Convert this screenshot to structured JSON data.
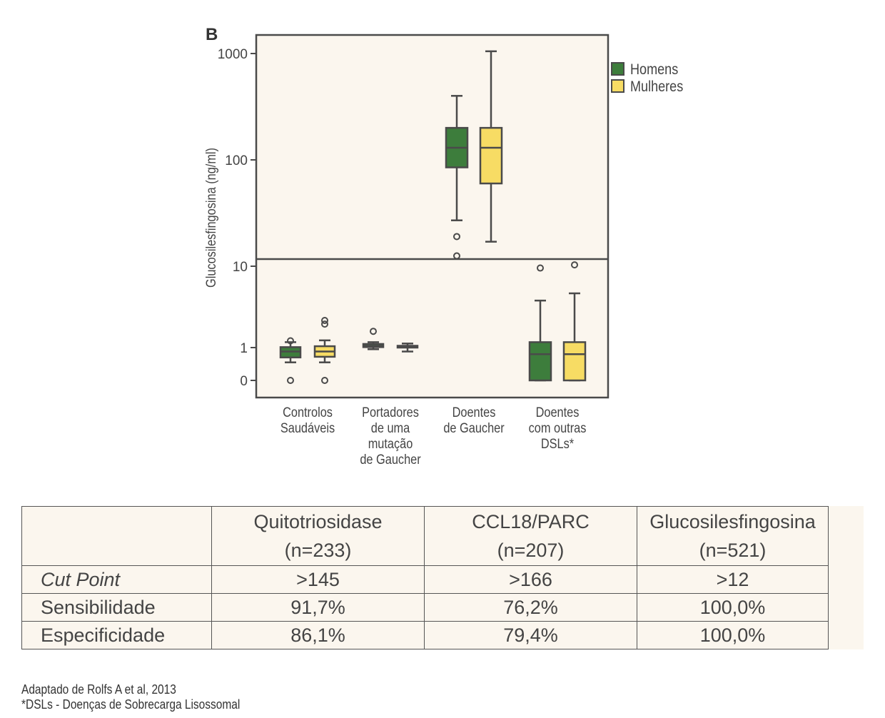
{
  "panel_label": "B",
  "chart_data": {
    "type": "box",
    "ylabel": "Glucosilesfingosina (ng/ml)",
    "y_scale": "broken: linear 0–10 (lower panel), log 10–1000 (upper panel)",
    "y_ticks": [
      "0",
      "1",
      "10",
      "100",
      "1000"
    ],
    "categories": [
      [
        "Controlos",
        "Saudáveis"
      ],
      [
        "Portadores",
        "de uma",
        "mutação",
        "de Gaucher"
      ],
      [
        "Doentes",
        "de Gaucher"
      ],
      [
        "Doentes",
        "com outras",
        "DSLs*"
      ]
    ],
    "legend": {
      "position": "top-right",
      "entries": [
        "Homens",
        "Mulheres"
      ]
    },
    "colors": {
      "Homens": "#3d7d3c",
      "Mulheres": "#f7dc64",
      "plot_bg": "#fbf6ee",
      "frame": "#4a4a4a"
    },
    "series": [
      {
        "name": "Homens",
        "boxes": [
          {
            "category": 0,
            "whisker_low": 0.55,
            "q1": 0.7,
            "median": 0.88,
            "q3": 1.05,
            "whisker_high": 1.6,
            "outliers": [
              0,
              1.75
            ]
          },
          {
            "category": 1,
            "whisker_low": 0.95,
            "q1": 1.05,
            "median": 1.2,
            "q3": 1.4,
            "whisker_high": 1.6,
            "outliers": [
              2.8
            ]
          },
          {
            "category": 2,
            "whisker_low": 27,
            "q1": 85,
            "median": 130,
            "q3": 200,
            "whisker_high": 400,
            "outliers": [
              19,
              12.5
            ]
          },
          {
            "category": 3,
            "whisker_low": 0,
            "q1": 0,
            "median": 0.8,
            "q3": 1.6,
            "whisker_high": 6.2,
            "outliers": [
              9.8
            ]
          }
        ]
      },
      {
        "name": "Mulheres",
        "boxes": [
          {
            "category": 0,
            "whisker_low": 0.55,
            "q1": 0.72,
            "median": 0.88,
            "q3": 1.15,
            "whisker_high": 1.8,
            "outliers": [
              0,
              3.6,
              4.0
            ]
          },
          {
            "category": 1,
            "whisker_low": 0.88,
            "q1": 1.0,
            "median": 1.1,
            "q3": 1.2,
            "whisker_high": 1.45,
            "outliers": []
          },
          {
            "category": 2,
            "whisker_low": 17,
            "q1": 60,
            "median": 130,
            "q3": 200,
            "whisker_high": 1050,
            "outliers": []
          },
          {
            "category": 3,
            "whisker_low": 0,
            "q1": 0,
            "median": 0.8,
            "q3": 1.6,
            "whisker_high": 7.0,
            "outliers": [
              10.3
            ]
          }
        ]
      }
    ]
  },
  "table": {
    "headers": [
      "",
      [
        "Quitotriosidase",
        "(n=233)"
      ],
      [
        "CCL18/PARC",
        "(n=207)"
      ],
      [
        "Glucosilesfingosina",
        "(n=521)"
      ]
    ],
    "rows": [
      {
        "label": "Cut Point",
        "italic": true,
        "values": [
          ">145",
          ">166",
          ">12"
        ]
      },
      {
        "label": "Sensibilidade",
        "italic": false,
        "values": [
          "91,7%",
          "76,2%",
          "100,0%"
        ]
      },
      {
        "label": "Especificidade",
        "italic": false,
        "values": [
          "86,1%",
          "79,4%",
          "100,0%"
        ]
      }
    ]
  },
  "footnotes": [
    "Adaptado de Rolfs A et al, 2013",
    "*DSLs - Doenças de Sobrecarga Lisossomal"
  ]
}
